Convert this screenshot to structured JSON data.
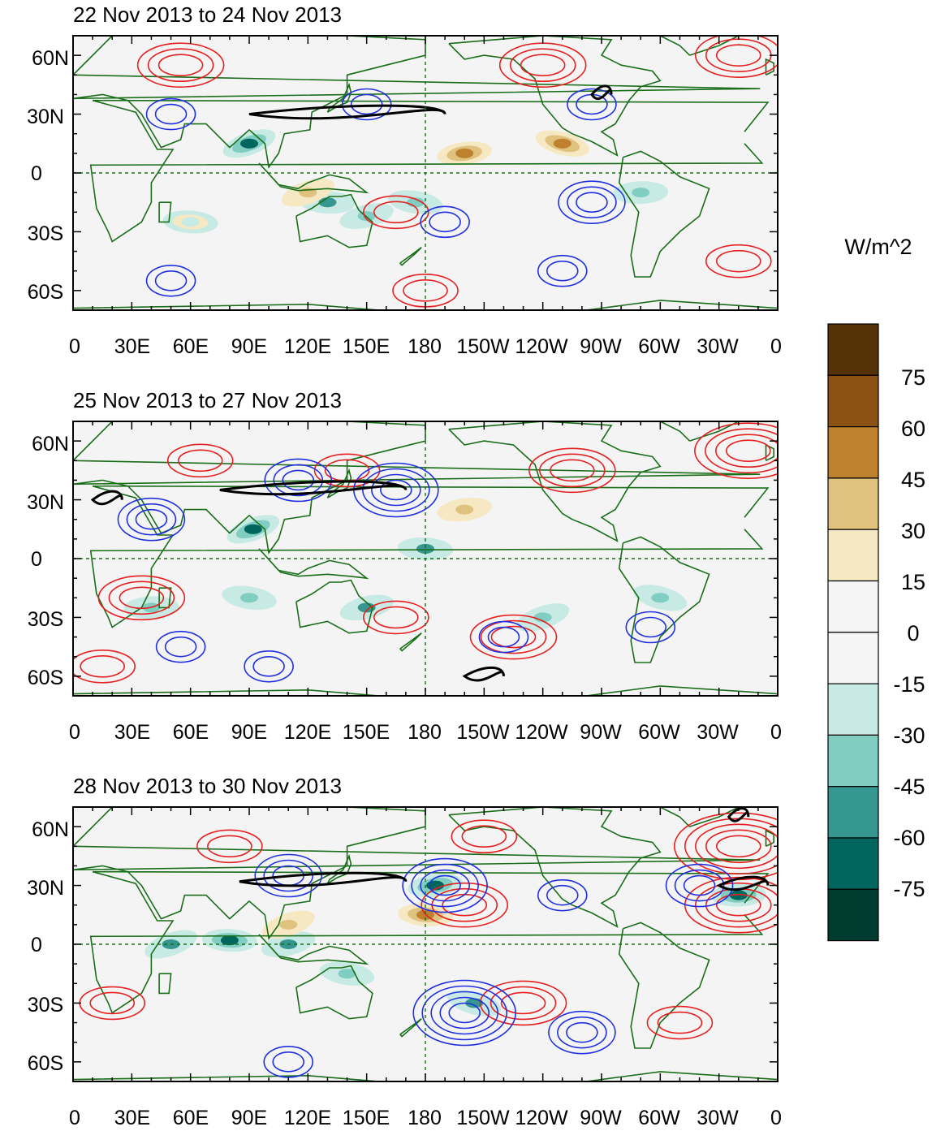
{
  "figure": {
    "units_label": "W/m^2",
    "lon_labels": [
      "0",
      "30E",
      "60E",
      "90E",
      "120E",
      "150E",
      "180",
      "150W",
      "120W",
      "90W",
      "60W",
      "30W",
      "0"
    ],
    "lat_labels": [
      "60N",
      "30N",
      "0",
      "30S",
      "60S"
    ]
  },
  "colors": {
    "land_outline": "#1a6e1a",
    "positive_contour": "#e62020",
    "negative_contour": "#2030e0",
    "jet_contour": "#000000",
    "reference_line": "#1a6e1a",
    "map_background": "#f4f4f4"
  },
  "chart_data": {
    "type": "map",
    "variable_units": "W/m^2",
    "lon_range": [
      0,
      360
    ],
    "lat_range": [
      -70,
      70
    ],
    "colorbar": {
      "levels": [
        -75,
        -60,
        -45,
        -30,
        -15,
        0,
        15,
        30,
        45,
        60,
        75
      ],
      "tick_labels": [
        "75",
        "60",
        "45",
        "30",
        "15",
        "0",
        "-15",
        "-30",
        "-45",
        "-60",
        "-75"
      ],
      "colors_top_to_bottom": [
        "#553208",
        "#8b5115",
        "#bf812d",
        "#dfc27d",
        "#f6e8c3",
        "#f5f5f5",
        "#f5f5f5",
        "#c7eae5",
        "#80cdc1",
        "#35978f",
        "#01665e",
        "#003c30"
      ]
    },
    "panels": [
      {
        "title": "22 Nov 2013 to 24 Nov 2013",
        "shading": [
          {
            "lon": 90,
            "lat": 15,
            "value": -75
          },
          {
            "lon": 130,
            "lat": -15,
            "value": -60
          },
          {
            "lon": 150,
            "lat": -22,
            "value": -45
          },
          {
            "lon": 175,
            "lat": -15,
            "value": -45
          },
          {
            "lon": 200,
            "lat": 10,
            "value": 45
          },
          {
            "lon": 250,
            "lat": 15,
            "value": 45
          },
          {
            "lon": 290,
            "lat": -10,
            "value": -45
          },
          {
            "lon": 120,
            "lat": -10,
            "value": 30
          },
          {
            "lon": 60,
            "lat": -25,
            "value": -30
          }
        ],
        "positive_contours": [
          {
            "lon": 55,
            "lat": 55,
            "rings": 3
          },
          {
            "lon": 165,
            "lat": -20,
            "rings": 2
          },
          {
            "lon": 240,
            "lat": 55,
            "rings": 3
          },
          {
            "lon": 340,
            "lat": 60,
            "rings": 3
          },
          {
            "lon": 340,
            "lat": -45,
            "rings": 2
          },
          {
            "lon": 180,
            "lat": -60,
            "rings": 2
          }
        ],
        "negative_contours": [
          {
            "lon": 50,
            "lat": 30,
            "rings": 2
          },
          {
            "lon": 150,
            "lat": 35,
            "rings": 2
          },
          {
            "lon": 190,
            "lat": -25,
            "rings": 2
          },
          {
            "lon": 265,
            "lat": -15,
            "rings": 3
          },
          {
            "lon": 265,
            "lat": 35,
            "rings": 2
          },
          {
            "lon": 50,
            "lat": -55,
            "rings": 2
          },
          {
            "lon": 250,
            "lat": -50,
            "rings": 2
          }
        ],
        "jet_contours": [
          {
            "lon_start": 90,
            "lon_end": 190,
            "lat": 30
          },
          {
            "lon_start": 265,
            "lon_end": 275,
            "lat": 40
          }
        ]
      },
      {
        "title": "25 Nov 2013 to 27 Nov 2013",
        "shading": [
          {
            "lon": 92,
            "lat": 15,
            "value": -75
          },
          {
            "lon": 180,
            "lat": 5,
            "value": -60
          },
          {
            "lon": 150,
            "lat": -25,
            "value": -60
          },
          {
            "lon": 90,
            "lat": -20,
            "value": -45
          },
          {
            "lon": 200,
            "lat": 25,
            "value": 30
          },
          {
            "lon": 300,
            "lat": -20,
            "value": -45
          },
          {
            "lon": 40,
            "lat": -25,
            "value": -45
          },
          {
            "lon": 240,
            "lat": -30,
            "value": -45
          }
        ],
        "positive_contours": [
          {
            "lon": 65,
            "lat": 50,
            "rings": 2
          },
          {
            "lon": 140,
            "lat": 45,
            "rings": 2
          },
          {
            "lon": 255,
            "lat": 45,
            "rings": 3
          },
          {
            "lon": 345,
            "lat": 55,
            "rings": 4
          },
          {
            "lon": 35,
            "lat": -20,
            "rings": 3
          },
          {
            "lon": 225,
            "lat": -40,
            "rings": 3
          },
          {
            "lon": 165,
            "lat": -30,
            "rings": 2
          },
          {
            "lon": 15,
            "lat": -55,
            "rings": 2
          }
        ],
        "negative_contours": [
          {
            "lon": 40,
            "lat": 20,
            "rings": 3
          },
          {
            "lon": 165,
            "lat": 35,
            "rings": 4
          },
          {
            "lon": 115,
            "lat": 40,
            "rings": 3
          },
          {
            "lon": 55,
            "lat": -45,
            "rings": 2
          },
          {
            "lon": 220,
            "lat": -40,
            "rings": 2
          },
          {
            "lon": 100,
            "lat": -55,
            "rings": 2
          },
          {
            "lon": 295,
            "lat": -35,
            "rings": 2
          }
        ],
        "jet_contours": [
          {
            "lon_start": 10,
            "lon_end": 25,
            "lat": 30
          },
          {
            "lon_start": 75,
            "lon_end": 170,
            "lat": 35
          },
          {
            "lon_start": 200,
            "lon_end": 220,
            "lat": -60
          }
        ]
      },
      {
        "title": "28 Nov 2013 to 30 Nov 2013",
        "shading": [
          {
            "lon": 50,
            "lat": 0,
            "value": -60
          },
          {
            "lon": 80,
            "lat": 2,
            "value": -75
          },
          {
            "lon": 110,
            "lat": 0,
            "value": -60
          },
          {
            "lon": 140,
            "lat": -15,
            "value": -45
          },
          {
            "lon": 185,
            "lat": 30,
            "value": -75
          },
          {
            "lon": 205,
            "lat": -30,
            "value": -60
          },
          {
            "lon": 340,
            "lat": 25,
            "value": -75
          },
          {
            "lon": 110,
            "lat": 10,
            "value": 30
          },
          {
            "lon": 180,
            "lat": 15,
            "value": 45
          }
        ],
        "positive_contours": [
          {
            "lon": 80,
            "lat": 50,
            "rings": 2
          },
          {
            "lon": 200,
            "lat": 20,
            "rings": 3
          },
          {
            "lon": 230,
            "lat": -30,
            "rings": 3
          },
          {
            "lon": 340,
            "lat": 50,
            "rings": 5
          },
          {
            "lon": 340,
            "lat": 20,
            "rings": 4
          },
          {
            "lon": 20,
            "lat": -30,
            "rings": 2
          },
          {
            "lon": 310,
            "lat": -40,
            "rings": 2
          },
          {
            "lon": 210,
            "lat": 55,
            "rings": 2
          }
        ],
        "negative_contours": [
          {
            "lon": 110,
            "lat": 35,
            "rings": 3
          },
          {
            "lon": 190,
            "lat": 30,
            "rings": 4
          },
          {
            "lon": 200,
            "lat": -35,
            "rings": 5
          },
          {
            "lon": 260,
            "lat": -45,
            "rings": 3
          },
          {
            "lon": 250,
            "lat": 25,
            "rings": 2
          },
          {
            "lon": 320,
            "lat": 30,
            "rings": 3
          },
          {
            "lon": 110,
            "lat": -60,
            "rings": 2
          }
        ],
        "jet_contours": [
          {
            "lon_start": 85,
            "lon_end": 170,
            "lat": 32
          },
          {
            "lon_start": 330,
            "lon_end": 355,
            "lat": 30
          },
          {
            "lon_start": 335,
            "lon_end": 345,
            "lat": 65
          }
        ]
      }
    ]
  }
}
